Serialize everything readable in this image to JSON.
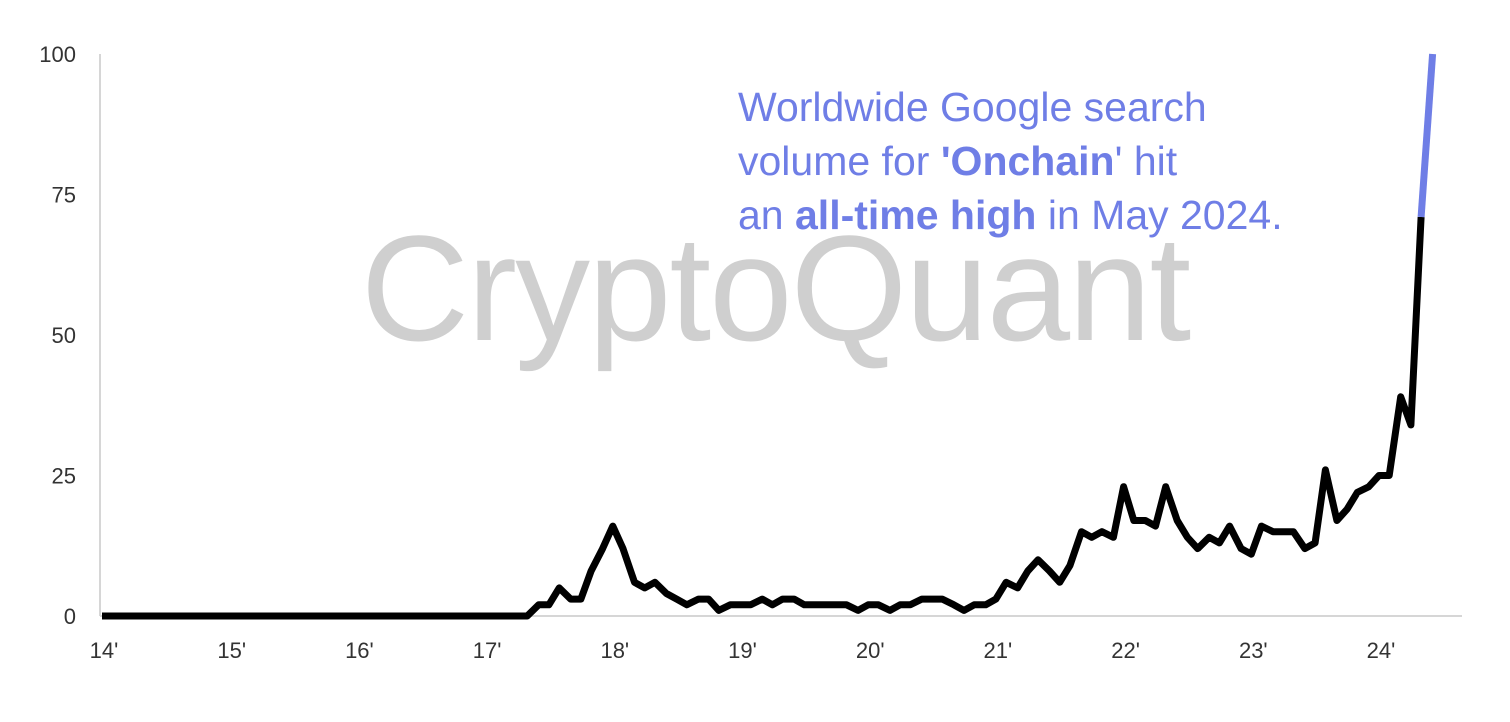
{
  "chart_data": {
    "type": "line",
    "title": "",
    "xlabel": "",
    "ylabel": "",
    "ylim": [
      0,
      100
    ],
    "xlim": [
      2014.0,
      2024.65
    ],
    "yticks": [
      0,
      25,
      50,
      75,
      100
    ],
    "xticks": [
      {
        "value": 2014,
        "label": "14'"
      },
      {
        "value": 2015,
        "label": "15'"
      },
      {
        "value": 2016,
        "label": "16'"
      },
      {
        "value": 2017,
        "label": "17'"
      },
      {
        "value": 2018,
        "label": "18'"
      },
      {
        "value": 2019,
        "label": "19'"
      },
      {
        "value": 2020,
        "label": "20'"
      },
      {
        "value": 2021,
        "label": "21'"
      },
      {
        "value": 2022,
        "label": "22'"
      },
      {
        "value": 2023,
        "label": "23'"
      },
      {
        "value": 2024,
        "label": "24'"
      }
    ],
    "grid": false,
    "watermark": "CryptoQuant",
    "annotation": {
      "line1": "Worldwide Google search",
      "line2_pre": "volume for ",
      "line2_bold": "'Onchain",
      "line2_post": "' hit",
      "line3_pre": "an ",
      "line3_bold": "all-time high",
      "line3_post": " in May 2024."
    },
    "series": [
      {
        "color": "#000000",
        "x": [
          2014.0,
          2017.17,
          2017.25,
          2017.33,
          2017.42,
          2017.5,
          2017.58,
          2017.67,
          2017.75,
          2017.83,
          2017.92,
          2018.0,
          2018.08,
          2018.17,
          2018.25,
          2018.33,
          2018.42,
          2018.5,
          2018.58,
          2018.67,
          2018.75,
          2018.83,
          2018.92,
          2019.0,
          2019.08,
          2019.17,
          2019.25,
          2019.33,
          2019.42,
          2019.5,
          2019.58,
          2019.67,
          2019.75,
          2019.83,
          2019.92,
          2020.0,
          2020.08,
          2020.17,
          2020.25,
          2020.33,
          2020.42,
          2020.5,
          2020.58,
          2020.67,
          2020.75,
          2020.83,
          2020.92,
          2021.0,
          2021.08,
          2021.17,
          2021.25,
          2021.33,
          2021.42,
          2021.5,
          2021.58,
          2021.67,
          2021.75,
          2021.83,
          2021.92,
          2022.0,
          2022.08,
          2022.17,
          2022.25,
          2022.33,
          2022.42,
          2022.5,
          2022.58,
          2022.67,
          2022.75,
          2022.83,
          2022.92,
          2023.0,
          2023.08,
          2023.17,
          2023.25,
          2023.33,
          2023.42,
          2023.5,
          2023.58,
          2023.67,
          2023.75,
          2023.83,
          2023.92,
          2024.0,
          2024.08,
          2024.17,
          2024.25,
          2024.33
        ],
        "values": [
          0,
          0,
          0,
          0,
          2,
          2,
          5,
          3,
          3,
          8,
          12,
          16,
          12,
          6,
          5,
          6,
          4,
          3,
          2,
          3,
          3,
          1,
          2,
          2,
          2,
          3,
          2,
          3,
          3,
          2,
          2,
          2,
          2,
          2,
          1,
          2,
          2,
          1,
          2,
          2,
          3,
          3,
          3,
          2,
          1,
          2,
          2,
          3,
          6,
          5,
          8,
          10,
          8,
          6,
          9,
          15,
          14,
          15,
          14,
          23,
          17,
          17,
          16,
          23,
          17,
          14,
          12,
          14,
          13,
          16,
          12,
          11,
          16,
          15,
          15,
          15,
          12,
          13,
          26,
          17,
          19,
          22,
          23,
          25,
          25,
          39,
          34,
          71
        ]
      },
      {
        "color": "#6f7ee6",
        "x": [
          2024.33,
          2024.42
        ],
        "values": [
          71,
          100
        ]
      }
    ]
  }
}
